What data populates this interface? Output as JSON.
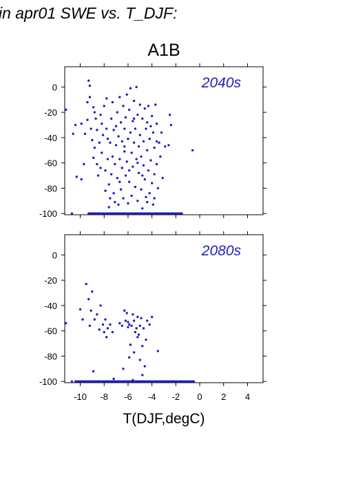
{
  "title": "in apr01 SWE vs. T_DJF:",
  "subtitle": "A1B",
  "colors": {
    "points": "#1f1fbf",
    "panel_label": "#1f1fbf",
    "axes": "#000000"
  },
  "chart_data": [
    {
      "type": "scatter",
      "panel_label": "2040s",
      "xlim": [
        -11.3,
        5.3
      ],
      "ylim": [
        -101,
        16
      ],
      "xticks": [
        -10,
        -8,
        -6,
        -4,
        -2,
        0,
        2,
        4
      ],
      "yticks": [
        0,
        -20,
        -40,
        -60,
        -80,
        -100
      ],
      "xtick_labels_shown": false,
      "xlabel": "",
      "grid": false,
      "points": [
        [
          -11.2,
          -18
        ],
        [
          -10.6,
          -37
        ],
        [
          -10.4,
          -30
        ],
        [
          -10.3,
          -71
        ],
        [
          -9.9,
          -29
        ],
        [
          -9.9,
          -73
        ],
        [
          -9.6,
          -37
        ],
        [
          -9.4,
          -26
        ],
        [
          -9.4,
          -12
        ],
        [
          -9.3,
          5
        ],
        [
          -9.2,
          1
        ],
        [
          -9.2,
          -8
        ],
        [
          -9.1,
          -33
        ],
        [
          -9.0,
          -42
        ],
        [
          -8.9,
          -16
        ],
        [
          -8.8,
          -20
        ],
        [
          -8.8,
          -48
        ],
        [
          -8.7,
          -25
        ],
        [
          -8.6,
          -34
        ],
        [
          -8.6,
          -61
        ],
        [
          -8.5,
          -70
        ],
        [
          -8.4,
          -44
        ],
        [
          -8.3,
          -64
        ],
        [
          -8.2,
          -29
        ],
        [
          -8.2,
          -52
        ],
        [
          -8.1,
          -38
        ],
        [
          -8.0,
          -15
        ],
        [
          -7.9,
          -66
        ],
        [
          -7.9,
          -82
        ],
        [
          -7.8,
          -9
        ],
        [
          -7.8,
          -33
        ],
        [
          -7.7,
          -57
        ],
        [
          -7.6,
          -77
        ],
        [
          -7.6,
          -95
        ],
        [
          -7.5,
          -44
        ],
        [
          -7.5,
          -88
        ],
        [
          -7.4,
          -25
        ],
        [
          -7.4,
          -69
        ],
        [
          -7.3,
          -12
        ],
        [
          -7.3,
          -55
        ],
        [
          -7.2,
          -34
        ],
        [
          -7.2,
          -84
        ],
        [
          -7.1,
          -61
        ],
        [
          -7.1,
          -91
        ],
        [
          -7.0,
          -46
        ],
        [
          -6.9,
          -20
        ],
        [
          -6.9,
          -72
        ],
        [
          -6.8,
          -39
        ],
        [
          -6.8,
          -93
        ],
        [
          -6.7,
          -8
        ],
        [
          -6.7,
          -57
        ],
        [
          -6.6,
          -28
        ],
        [
          -6.6,
          -81
        ],
        [
          -6.5,
          -64
        ],
        [
          -6.5,
          -43
        ],
        [
          -6.4,
          -15
        ],
        [
          -6.4,
          -88
        ],
        [
          -6.3,
          -51
        ],
        [
          -6.3,
          -33
        ],
        [
          -6.2,
          -70
        ],
        [
          -6.2,
          -24
        ],
        [
          -6.1,
          -6
        ],
        [
          -6.1,
          -59
        ],
        [
          -6.0,
          -41
        ],
        [
          -6.0,
          -92
        ],
        [
          -5.9,
          -18
        ],
        [
          -5.9,
          -75
        ],
        [
          -5.8,
          -36
        ],
        [
          -5.8,
          -1
        ],
        [
          -5.7,
          -52
        ],
        [
          -5.7,
          -86
        ],
        [
          -5.6,
          -27
        ],
        [
          -5.6,
          -63
        ],
        [
          -5.5,
          -44
        ],
        [
          -5.5,
          -11
        ],
        [
          -5.4,
          -79
        ],
        [
          -5.4,
          -33
        ],
        [
          -5.3,
          0
        ],
        [
          -5.3,
          -57
        ],
        [
          -5.2,
          -22
        ],
        [
          -5.2,
          -90
        ],
        [
          -5.1,
          -47
        ],
        [
          -5.1,
          -68
        ],
        [
          -5.0,
          -14
        ],
        [
          -5.0,
          -38
        ],
        [
          -4.9,
          -81
        ],
        [
          -4.9,
          -55
        ],
        [
          -4.8,
          -25
        ],
        [
          -4.8,
          -96
        ],
        [
          -4.7,
          -62
        ],
        [
          -4.7,
          -43
        ],
        [
          -4.6,
          -17
        ],
        [
          -4.6,
          -73
        ],
        [
          -4.5,
          -33
        ],
        [
          -4.5,
          -87
        ],
        [
          -4.4,
          -50
        ],
        [
          -4.4,
          -28
        ],
        [
          -4.3,
          -66
        ],
        [
          -4.3,
          -15
        ],
        [
          -4.2,
          -41
        ],
        [
          -4.2,
          -84
        ],
        [
          -4.1,
          -58
        ],
        [
          -4.0,
          -23
        ],
        [
          -4.0,
          -76
        ],
        [
          -3.9,
          -36
        ],
        [
          -3.9,
          -93
        ],
        [
          -3.8,
          -48
        ],
        [
          -3.8,
          -69
        ],
        [
          -3.7,
          -14
        ],
        [
          -3.6,
          -61
        ],
        [
          -3.6,
          -29
        ],
        [
          -3.5,
          -80
        ],
        [
          -3.4,
          -44
        ],
        [
          -3.3,
          -55
        ],
        [
          -3.2,
          -36
        ],
        [
          -3.1,
          -72
        ],
        [
          -2.9,
          -47
        ],
        [
          -2.6,
          -46
        ],
        [
          -2.5,
          -22
        ],
        [
          -2.4,
          -30
        ],
        [
          -0.6,
          -50
        ],
        [
          -9.7,
          -61
        ],
        [
          -8.9,
          -56
        ],
        [
          -7.0,
          -31
        ],
        [
          -6.3,
          -47
        ],
        [
          -5.5,
          -25
        ],
        [
          -4.8,
          -70
        ],
        [
          -4.1,
          -31
        ],
        [
          -3.6,
          -43
        ],
        [
          -5.9,
          -66
        ],
        [
          -6.7,
          -75
        ],
        [
          -7.7,
          -41
        ],
        [
          -8.3,
          -22
        ],
        [
          -5.2,
          -60
        ],
        [
          -4.4,
          -91
        ],
        [
          -3.8,
          -88
        ]
      ],
      "points_at_floor": {
        "y": -100,
        "x": [
          -10.7,
          -9.3,
          -9.1,
          -8.9,
          -8.7,
          -8.5,
          -8.3,
          -8.1,
          -7.9,
          -7.7,
          -7.5,
          -7.3,
          -7.1,
          -6.9,
          -6.7,
          -6.5,
          -6.3,
          -6.1,
          -5.9,
          -5.7,
          -5.5,
          -5.3,
          -5.1,
          -4.9,
          -4.7,
          -4.5,
          -4.3,
          -4.1,
          -3.9,
          -3.7,
          -3.5,
          -3.3,
          -3.1,
          -2.9,
          -2.7,
          -2.5,
          -2.3,
          -2.1,
          -1.9,
          -1.7,
          -1.5
        ]
      }
    },
    {
      "type": "scatter",
      "panel_label": "2080s",
      "xlim": [
        -11.3,
        5.3
      ],
      "ylim": [
        -101,
        16
      ],
      "xticks": [
        -10,
        -8,
        -6,
        -4,
        -2,
        0,
        2,
        4
      ],
      "yticks": [
        0,
        -20,
        -40,
        -60,
        -80,
        -100
      ],
      "xtick_labels_shown": true,
      "xlabel": "T(DJF,degC)",
      "grid": false,
      "points": [
        [
          -11.2,
          -54
        ],
        [
          -10.0,
          -43
        ],
        [
          -9.8,
          -51
        ],
        [
          -9.5,
          -23
        ],
        [
          -9.3,
          -35
        ],
        [
          -9.2,
          -56
        ],
        [
          -9.1,
          -44
        ],
        [
          -9.0,
          -29
        ],
        [
          -8.9,
          -92
        ],
        [
          -8.8,
          -51
        ],
        [
          -8.6,
          -47
        ],
        [
          -8.4,
          -59
        ],
        [
          -8.3,
          -40
        ],
        [
          -8.1,
          -55
        ],
        [
          -8.0,
          -61
        ],
        [
          -7.9,
          -51
        ],
        [
          -7.8,
          -65
        ],
        [
          -7.7,
          -58
        ],
        [
          -7.5,
          -55
        ],
        [
          -7.3,
          -61
        ],
        [
          -7.2,
          -98
        ],
        [
          -6.7,
          -54
        ],
        [
          -6.5,
          -56
        ],
        [
          -6.3,
          -44
        ],
        [
          -6.2,
          -52
        ],
        [
          -6.1,
          -46
        ],
        [
          -6.0,
          -53
        ],
        [
          -5.9,
          -55
        ],
        [
          -5.8,
          -71
        ],
        [
          -5.7,
          -56
        ],
        [
          -5.6,
          -47
        ],
        [
          -5.5,
          -77
        ],
        [
          -5.5,
          -52
        ],
        [
          -5.4,
          -61
        ],
        [
          -5.3,
          -58
        ],
        [
          -5.2,
          -49
        ],
        [
          -5.1,
          -63
        ],
        [
          -5.0,
          -56
        ],
        [
          -5.0,
          -83
        ],
        [
          -4.9,
          -50
        ],
        [
          -4.8,
          -72
        ],
        [
          -4.7,
          -58
        ],
        [
          -4.6,
          -88
        ],
        [
          -4.5,
          -67
        ],
        [
          -4.4,
          -52
        ],
        [
          -4.2,
          -55
        ],
        [
          -4.0,
          -49
        ],
        [
          -3.5,
          -76
        ],
        [
          -5.9,
          -81
        ],
        [
          -5.6,
          -99
        ],
        [
          -4.8,
          -95
        ],
        [
          -6.4,
          -90
        ],
        [
          -5.2,
          -65
        ],
        [
          -6.0,
          -57
        ]
      ],
      "points_at_floor": {
        "y": -100,
        "x": [
          -10.7,
          -10.4,
          -9.9,
          -9.5,
          -9.3,
          -9.1,
          -8.9,
          -8.7,
          -8.5,
          -8.3,
          -8.1,
          -7.9,
          -7.7,
          -7.5,
          -7.3,
          -7.1,
          -6.9,
          -6.7,
          -6.5,
          -6.3,
          -6.1,
          -5.9,
          -5.7,
          -5.5,
          -5.3,
          -5.1,
          -4.9,
          -4.7,
          -4.5,
          -4.3,
          -4.1,
          -3.9,
          -3.7,
          -3.5,
          -3.3,
          -3.1,
          -2.9,
          -2.7,
          -2.5,
          -2.3,
          -2.1,
          -1.9,
          -1.6,
          -1.3,
          -0.5
        ]
      }
    }
  ]
}
